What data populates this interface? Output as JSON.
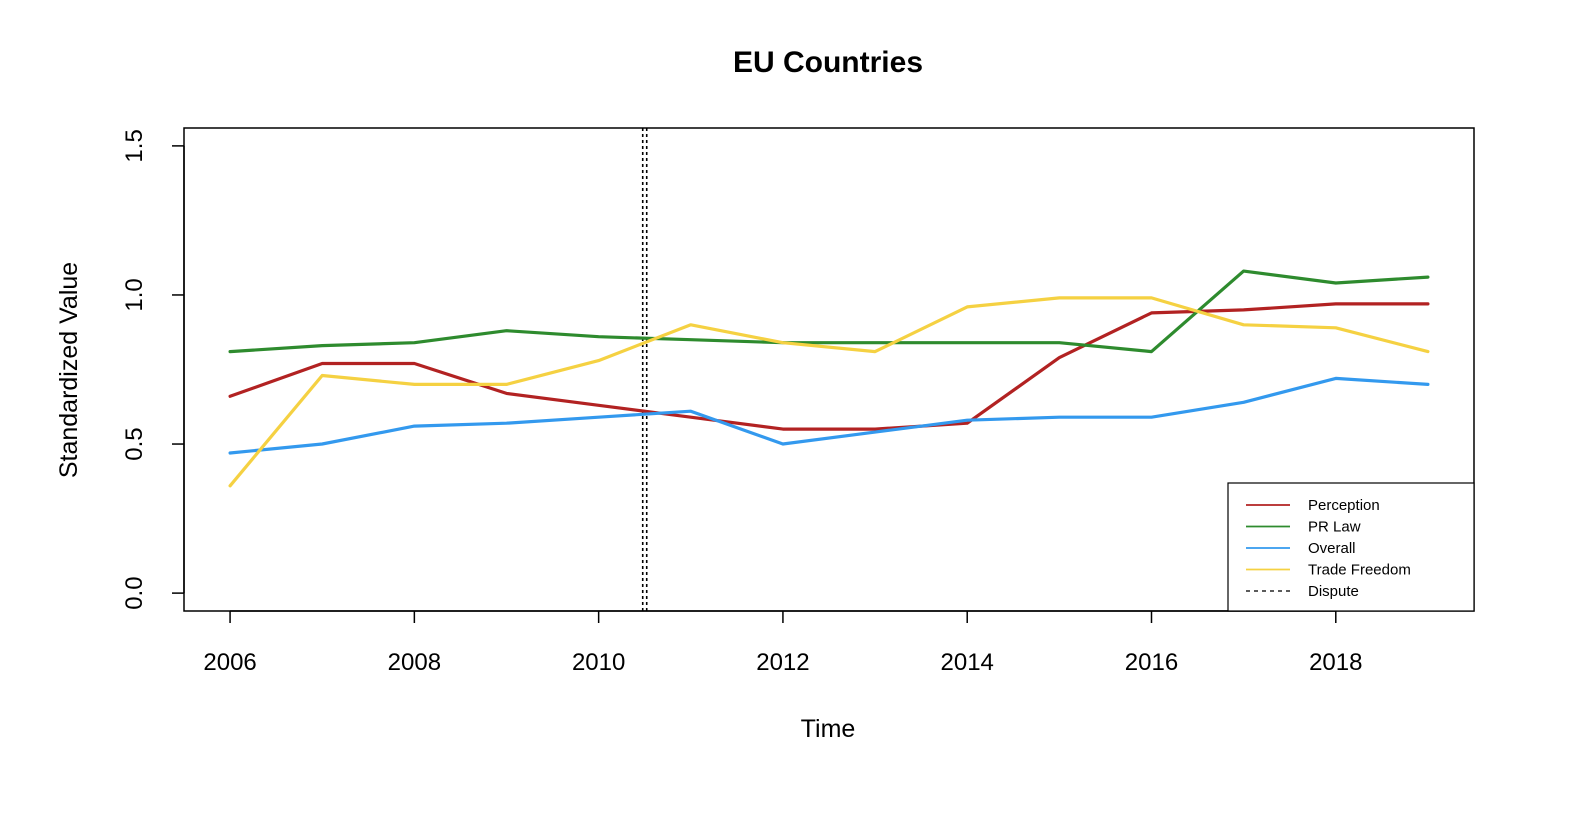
{
  "chart_data": {
    "type": "line",
    "title": "EU Countries",
    "xlabel": "Time",
    "ylabel": "Standardized Value",
    "xlim": [
      2005.5,
      2019.5
    ],
    "ylim": [
      -0.06,
      1.56
    ],
    "x_ticks": [
      2006,
      2008,
      2010,
      2012,
      2014,
      2016,
      2018
    ],
    "x_tick_labels": [
      "2006",
      "2008",
      "2010",
      "2012",
      "2014",
      "2016",
      "2018"
    ],
    "y_ticks": [
      0.0,
      0.5,
      1.0,
      1.5
    ],
    "y_tick_labels": [
      "0.0",
      "0.5",
      "1.0",
      "1.5"
    ],
    "grid": false,
    "legend_position": "bottom-right",
    "x": [
      2006,
      2007,
      2008,
      2009,
      2010,
      2011,
      2012,
      2013,
      2014,
      2015,
      2016,
      2017,
      2018,
      2019
    ],
    "series": [
      {
        "name": "Perception",
        "color": "#b22222",
        "values": [
          0.66,
          0.77,
          0.77,
          0.67,
          0.63,
          0.59,
          0.55,
          0.55,
          0.57,
          0.79,
          0.94,
          0.95,
          0.97,
          0.97
        ]
      },
      {
        "name": "PR Law",
        "color": "#2e8b2e",
        "values": [
          0.81,
          0.83,
          0.84,
          0.88,
          0.86,
          0.85,
          0.84,
          0.84,
          0.84,
          0.84,
          0.81,
          1.08,
          1.04,
          1.06
        ]
      },
      {
        "name": "Overall",
        "color": "#3399ee",
        "values": [
          0.47,
          0.5,
          0.56,
          0.57,
          0.59,
          0.61,
          0.5,
          0.54,
          0.58,
          0.59,
          0.59,
          0.64,
          0.72,
          0.7
        ]
      },
      {
        "name": "Trade Freedom",
        "color": "#f5d142",
        "values": [
          0.36,
          0.73,
          0.7,
          0.7,
          0.78,
          0.9,
          0.84,
          0.81,
          0.96,
          0.99,
          0.99,
          0.9,
          0.89,
          0.81
        ]
      }
    ],
    "reference_line": {
      "name": "Dispute",
      "x": 2010.5,
      "style": "dotted",
      "color": "#000000"
    }
  }
}
